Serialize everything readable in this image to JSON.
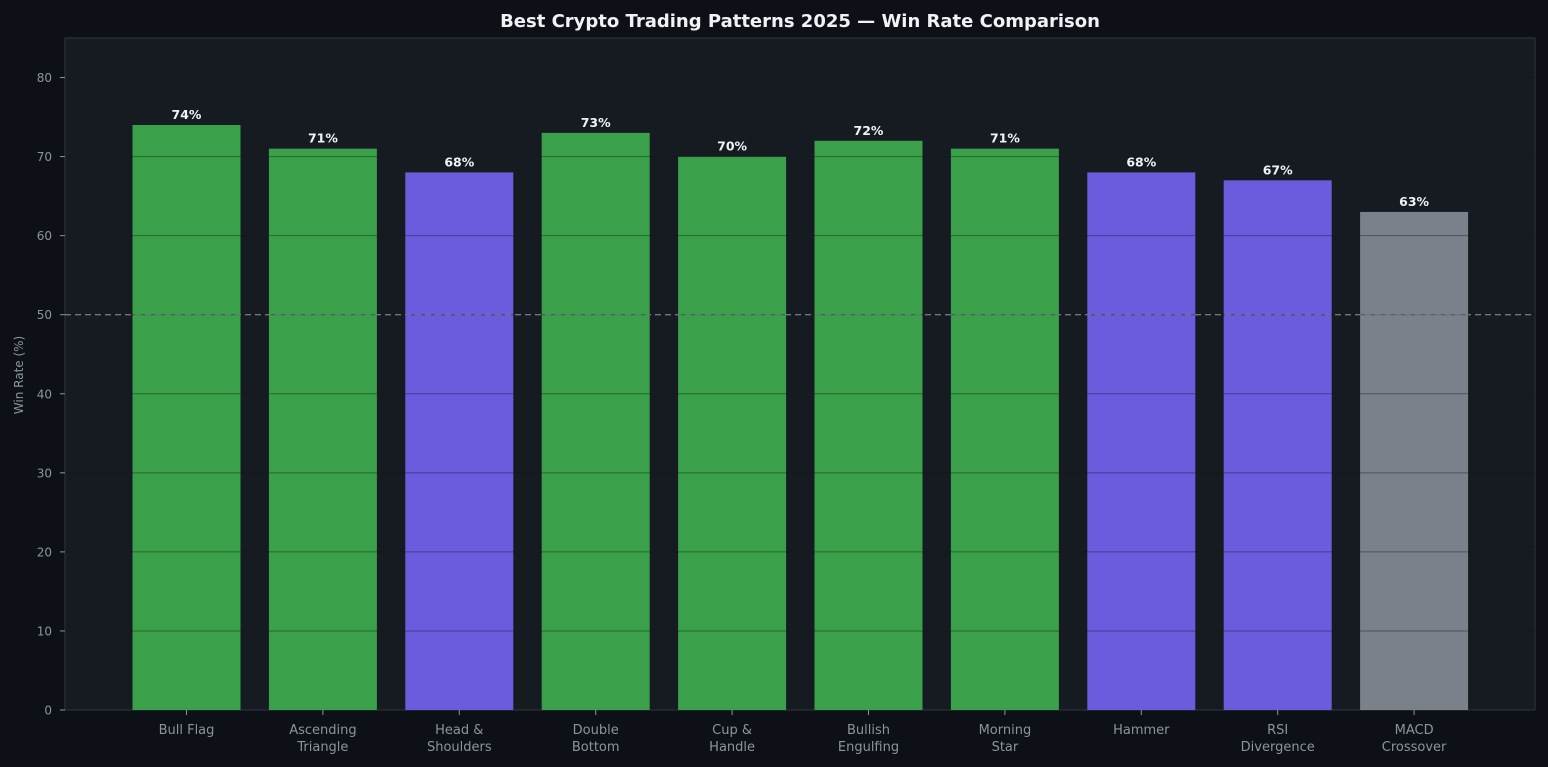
{
  "chart_data": {
    "type": "bar",
    "title": "Best Crypto Trading Patterns 2025 — Win Rate Comparison",
    "xlabel": "",
    "ylabel": "Win Rate (%)",
    "ylim": [
      0,
      85
    ],
    "yticks": [
      0,
      10,
      20,
      30,
      40,
      50,
      60,
      70,
      80
    ],
    "grid": true,
    "reference_line": 50,
    "categories": [
      "Bull Flag",
      "Ascending Triangle",
      "Head & Shoulders",
      "Double Bottom",
      "Cup & Handle",
      "Bullish Engulfing",
      "Morning Star",
      "Hammer",
      "RSI Divergence",
      "MACD Crossover"
    ],
    "category_lines": [
      [
        "Bull Flag"
      ],
      [
        "Ascending",
        "Triangle"
      ],
      [
        "Head &",
        "Shoulders"
      ],
      [
        "Double",
        "Bottom"
      ],
      [
        "Cup &",
        "Handle"
      ],
      [
        "Bullish",
        "Engulfing"
      ],
      [
        "Morning",
        "Star"
      ],
      [
        "Hammer"
      ],
      [
        "RSI",
        "Divergence"
      ],
      [
        "MACD",
        "Crossover"
      ]
    ],
    "values": [
      74,
      71,
      68,
      73,
      70,
      72,
      71,
      68,
      67,
      63
    ],
    "value_labels": [
      "74%",
      "71%",
      "68%",
      "73%",
      "70%",
      "72%",
      "71%",
      "68%",
      "67%",
      "63%"
    ],
    "colors": [
      "#3aa04a",
      "#3aa04a",
      "#6b5bdd",
      "#3aa04a",
      "#3aa04a",
      "#3aa04a",
      "#3aa04a",
      "#6b5bdd",
      "#6b5bdd",
      "#7a818a"
    ]
  },
  "theme": {
    "background": "#0d1117",
    "plot_background": "#161b22",
    "grid": "#21262d",
    "axis": "#30363d",
    "text": "#8b949e",
    "title": "#f0f3f6",
    "reference_line": "#6e7681"
  }
}
